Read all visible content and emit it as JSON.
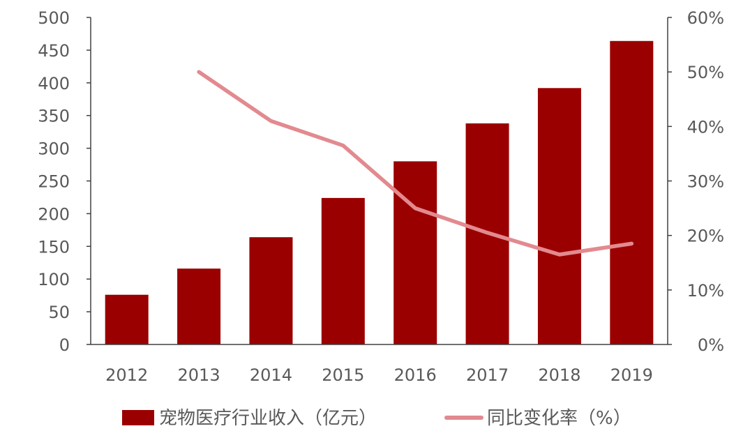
{
  "chart_data": {
    "type": "bar",
    "categories": [
      "2012",
      "2013",
      "2014",
      "2015",
      "2016",
      "2017",
      "2018",
      "2019"
    ],
    "series": [
      {
        "name": "宠物医疗行业收入（亿元）",
        "type": "bar",
        "axis": "left",
        "color": "#9b0000",
        "values": [
          76,
          116,
          164,
          224,
          280,
          338,
          392,
          464
        ]
      },
      {
        "name": "同比变化率（%）",
        "type": "line",
        "axis": "right",
        "color": "#e28a8f",
        "values": [
          null,
          0.5,
          0.41,
          0.365,
          0.25,
          0.205,
          0.165,
          0.185
        ]
      }
    ],
    "y_left": {
      "ylim": [
        0,
        500
      ],
      "ticks": [
        "0",
        "50",
        "100",
        "150",
        "200",
        "250",
        "300",
        "350",
        "400",
        "450",
        "500"
      ]
    },
    "y_right": {
      "ylim": [
        0,
        0.6
      ],
      "ticks": [
        "0%",
        "10%",
        "20%",
        "30%",
        "40%",
        "50%",
        "60%"
      ]
    },
    "grid": false,
    "legend_position": "bottom"
  }
}
